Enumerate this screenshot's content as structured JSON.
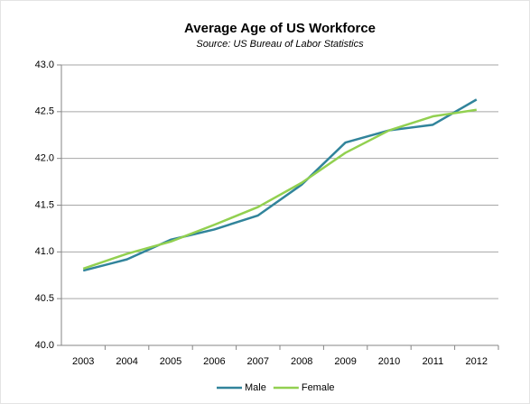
{
  "chart_data": {
    "type": "line",
    "title": "Average Age of US Workforce",
    "subtitle": "Source: US Bureau of Labor Statistics",
    "categories": [
      "2003",
      "2004",
      "2005",
      "2006",
      "2007",
      "2008",
      "2009",
      "2010",
      "2011",
      "2012"
    ],
    "series": [
      {
        "name": "Male",
        "color": "#31849b",
        "values": [
          40.8,
          40.92,
          41.13,
          41.24,
          41.39,
          41.72,
          42.17,
          42.3,
          42.36,
          42.63
        ]
      },
      {
        "name": "Female",
        "color": "#92d050",
        "values": [
          40.82,
          40.98,
          41.11,
          41.29,
          41.48,
          41.74,
          42.06,
          42.3,
          42.45,
          42.52
        ]
      }
    ],
    "ylim": [
      40,
      43
    ],
    "yticks": [
      {
        "value": 40,
        "label": "40.0"
      },
      40.5,
      {
        "value": 41,
        "label": "41.0"
      },
      41.5,
      {
        "value": 42,
        "label": "42.0"
      },
      42.5,
      {
        "value": 43,
        "label": "43.0"
      }
    ],
    "grid": true,
    "legend": "bottom"
  }
}
